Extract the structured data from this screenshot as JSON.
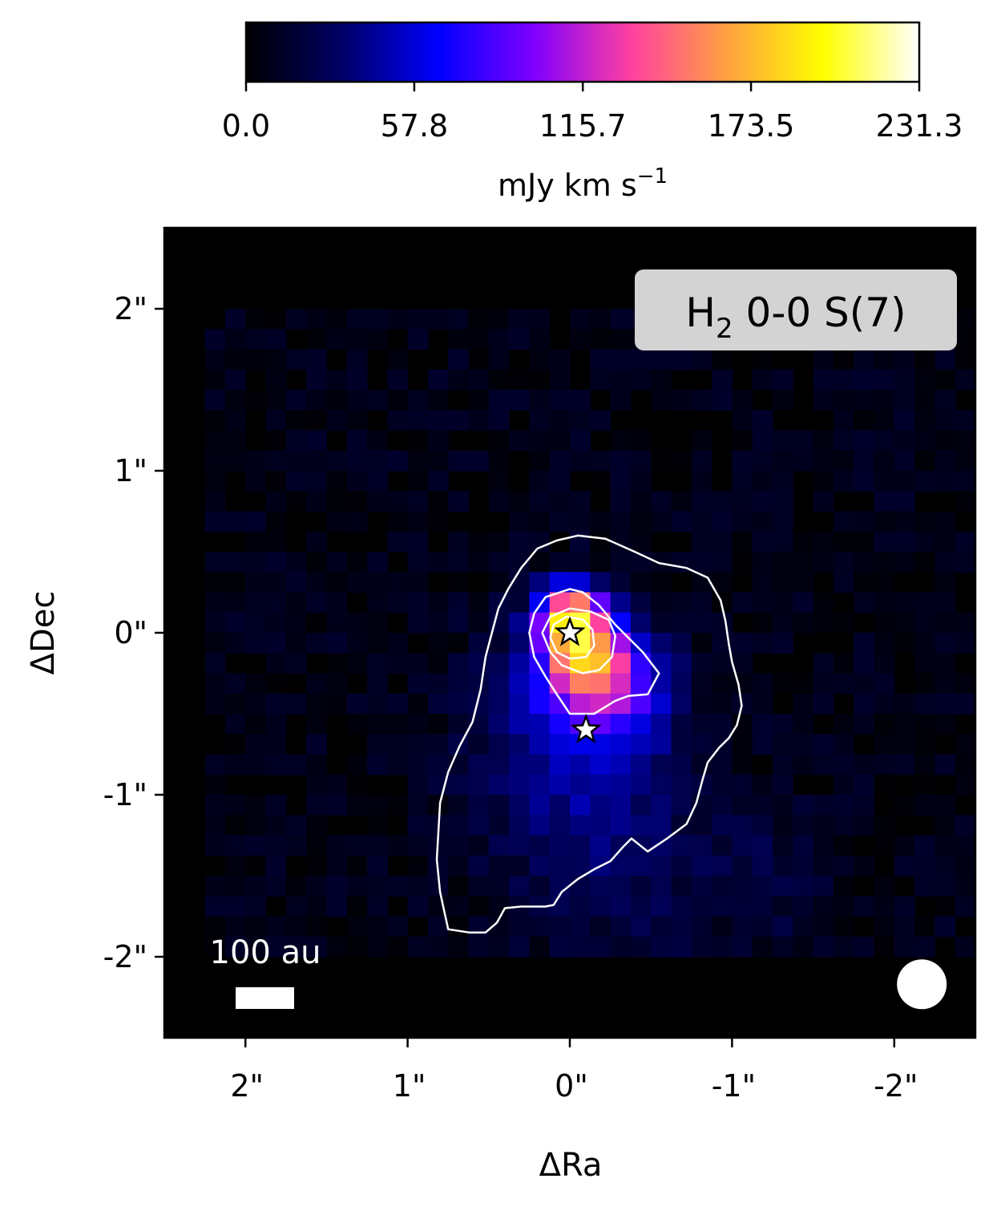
{
  "chart_data": {
    "type": "heatmap",
    "title": "",
    "panel_label": {
      "text": "H",
      "sub": "2",
      "rest": " 0-0 S(7)"
    },
    "xlabel": "ΔRa",
    "ylabel": "ΔDec",
    "xlim": [
      2.5,
      -2.5
    ],
    "ylim": [
      -2.5,
      2.5
    ],
    "xticks": [
      {
        "value": 2,
        "label": "2\""
      },
      {
        "value": 1,
        "label": "1\""
      },
      {
        "value": 0,
        "label": "0\""
      },
      {
        "value": -1,
        "label": "-1\""
      },
      {
        "value": -2,
        "label": "-2\""
      }
    ],
    "yticks": [
      {
        "value": 2,
        "label": "2\""
      },
      {
        "value": 1,
        "label": "1\""
      },
      {
        "value": 0,
        "label": "0\""
      },
      {
        "value": -1,
        "label": "-1\""
      },
      {
        "value": -2,
        "label": "-2\""
      }
    ],
    "colorbar": {
      "label_main": "mJy km s",
      "label_sup": "−1",
      "min": 0.0,
      "max": 231.3,
      "ticks": [
        {
          "value": 0.0,
          "label": "0.0"
        },
        {
          "value": 57.8,
          "label": "57.8"
        },
        {
          "value": 115.7,
          "label": "115.7"
        },
        {
          "value": 173.5,
          "label": "173.5"
        },
        {
          "value": 231.3,
          "label": "231.3"
        }
      ],
      "colormap": "gnuplot2",
      "colors": [
        "#000000",
        "#000066",
        "#0000ff",
        "#8000ff",
        "#ff40a0",
        "#ffa040",
        "#ffff00",
        "#ffffff"
      ]
    },
    "scalebar_label": "100 au",
    "pixel_size_arcsec": 0.125,
    "grid": false,
    "map_extent": {
      "ra_from": 2.25,
      "ra_to": -2.5,
      "dec_from": 2.0,
      "dec_to": -2.0
    },
    "emission": {
      "noise_level": 9,
      "blobs": [
        {
          "ra": 0.0,
          "dec": 0.1,
          "peak": 145,
          "sigma": 0.14
        },
        {
          "ra": -0.1,
          "dec": -0.15,
          "peak": 100,
          "sigma": 0.17
        },
        {
          "ra": -0.1,
          "dec": -0.3,
          "peak": 55,
          "sigma": 0.3
        },
        {
          "ra": -0.35,
          "dec": -0.35,
          "peak": 35,
          "sigma": 0.2
        },
        {
          "ra": -0.05,
          "dec": -0.8,
          "peak": 32,
          "sigma": 0.45
        },
        {
          "ra": -0.3,
          "dec": -1.5,
          "peak": 14,
          "sigma": 0.45
        },
        {
          "ra": -1.2,
          "dec": -1.5,
          "peak": 16,
          "sigma": 0.25
        }
      ]
    },
    "contours": [
      {
        "level": "outer",
        "points": [
          [
            0.75,
            -1.83
          ],
          [
            0.62,
            -1.85
          ],
          [
            0.52,
            -1.85
          ],
          [
            0.45,
            -1.79
          ],
          [
            0.4,
            -1.7
          ],
          [
            0.3,
            -1.69
          ],
          [
            0.15,
            -1.69
          ],
          [
            0.1,
            -1.68
          ],
          [
            0.05,
            -1.6
          ],
          [
            -0.05,
            -1.52
          ],
          [
            -0.15,
            -1.46
          ],
          [
            -0.25,
            -1.41
          ],
          [
            -0.33,
            -1.32
          ],
          [
            -0.38,
            -1.27
          ],
          [
            -0.48,
            -1.35
          ],
          [
            -0.6,
            -1.27
          ],
          [
            -0.72,
            -1.18
          ],
          [
            -0.78,
            -1.05
          ],
          [
            -0.82,
            -0.9
          ],
          [
            -0.85,
            -0.8
          ],
          [
            -0.92,
            -0.71
          ],
          [
            -0.98,
            -0.65
          ],
          [
            -1.03,
            -0.57
          ],
          [
            -1.06,
            -0.45
          ],
          [
            -1.04,
            -0.32
          ],
          [
            -1.0,
            -0.18
          ],
          [
            -0.98,
            -0.07
          ],
          [
            -0.96,
            0.07
          ],
          [
            -0.93,
            0.2
          ],
          [
            -0.85,
            0.34
          ],
          [
            -0.72,
            0.4
          ],
          [
            -0.55,
            0.43
          ],
          [
            -0.4,
            0.5
          ],
          [
            -0.22,
            0.58
          ],
          [
            -0.05,
            0.6
          ],
          [
            0.08,
            0.57
          ],
          [
            0.2,
            0.52
          ],
          [
            0.3,
            0.4
          ],
          [
            0.38,
            0.27
          ],
          [
            0.44,
            0.15
          ],
          [
            0.48,
            0.0
          ],
          [
            0.52,
            -0.15
          ],
          [
            0.55,
            -0.35
          ],
          [
            0.6,
            -0.55
          ],
          [
            0.68,
            -0.7
          ],
          [
            0.75,
            -0.86
          ],
          [
            0.8,
            -1.05
          ],
          [
            0.82,
            -1.4
          ],
          [
            0.8,
            -1.6
          ],
          [
            0.75,
            -1.83
          ]
        ]
      },
      {
        "level": "mid",
        "points": [
          [
            0.0,
            0.27
          ],
          [
            0.15,
            0.22
          ],
          [
            0.22,
            0.12
          ],
          [
            0.25,
            0.0
          ],
          [
            0.22,
            -0.15
          ],
          [
            0.15,
            -0.27
          ],
          [
            0.08,
            -0.38
          ],
          [
            0.0,
            -0.5
          ],
          [
            -0.15,
            -0.5
          ],
          [
            -0.28,
            -0.42
          ],
          [
            -0.36,
            -0.39
          ],
          [
            -0.48,
            -0.38
          ],
          [
            -0.55,
            -0.25
          ],
          [
            -0.45,
            -0.12
          ],
          [
            -0.35,
            -0.02
          ],
          [
            -0.28,
            0.05
          ],
          [
            -0.18,
            0.17
          ],
          [
            -0.08,
            0.25
          ],
          [
            0.0,
            0.27
          ]
        ]
      },
      {
        "level": "inner1",
        "points": [
          [
            0.0,
            0.15
          ],
          [
            0.12,
            0.1
          ],
          [
            0.17,
            0.0
          ],
          [
            0.12,
            -0.12
          ],
          [
            0.05,
            -0.2
          ],
          [
            -0.08,
            -0.25
          ],
          [
            -0.18,
            -0.23
          ],
          [
            -0.26,
            -0.15
          ],
          [
            -0.28,
            -0.02
          ],
          [
            -0.24,
            0.08
          ],
          [
            -0.13,
            0.13
          ],
          [
            0.0,
            0.15
          ]
        ]
      },
      {
        "level": "inner2",
        "points": [
          [
            0.02,
            0.1
          ],
          [
            0.1,
            0.05
          ],
          [
            0.12,
            -0.03
          ],
          [
            0.08,
            -0.12
          ],
          [
            0.0,
            -0.16
          ],
          [
            -0.1,
            -0.15
          ],
          [
            -0.15,
            -0.08
          ],
          [
            -0.14,
            0.02
          ],
          [
            -0.08,
            0.08
          ],
          [
            0.02,
            0.1
          ]
        ]
      }
    ],
    "stars": [
      {
        "ra": 0.0,
        "dec": 0.0,
        "fill": "#ffffff",
        "stroke": "#000000"
      },
      {
        "ra": -0.1,
        "dec": -0.6,
        "fill": "#ffffff",
        "stroke": "#000000"
      }
    ],
    "beam": {
      "ra": -2.17,
      "dec": -2.17
    }
  }
}
